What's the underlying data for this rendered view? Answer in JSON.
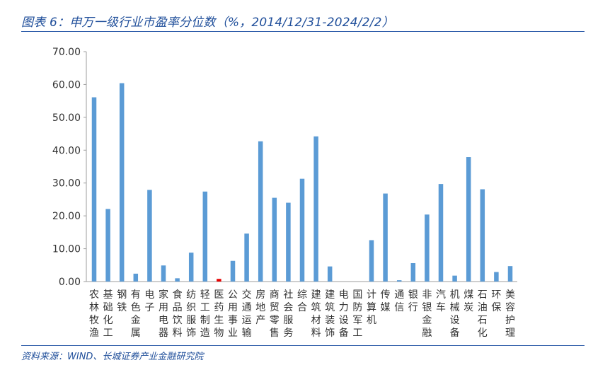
{
  "header": {
    "title": "图表 6：申万一级行业市盈率分位数（%，2014/12/31-2024/2/2）"
  },
  "footer": {
    "source": "资料来源：WIND、长城证券产业金融研究院"
  },
  "colors": {
    "bar": "#5b9bd5",
    "highlight": "#e60000",
    "axis": "#9e9e9e",
    "rule": "#2b5aa8"
  },
  "chart_data": {
    "type": "bar",
    "title": "",
    "xlabel": "",
    "ylabel": "",
    "ylim": [
      0,
      70
    ],
    "grid": false,
    "legend": "none",
    "yticks": [
      "0.00",
      "10.00",
      "20.00",
      "30.00",
      "40.00",
      "50.00",
      "60.00",
      "70.00"
    ],
    "categories": [
      "农林牧渔",
      "基础化工",
      "钢铁",
      "有色金属",
      "电子",
      "家用电器",
      "食品饮料",
      "纺织服饰",
      "轻工制造",
      "医药生物",
      "公用事业",
      "交通运输",
      "房地产",
      "商贸零售",
      "社会服务",
      "综合",
      "建筑材料",
      "建筑装饰",
      "电力设备",
      "国防军工",
      "计算机",
      "传媒",
      "通信",
      "银行",
      "非银金融",
      "汽车",
      "机械设备",
      "煤炭",
      "石油石化",
      "环保",
      "美容护理"
    ],
    "values": [
      56.1,
      22.1,
      60.4,
      2.4,
      27.9,
      4.9,
      1.0,
      8.8,
      27.4,
      0.8,
      6.3,
      14.6,
      42.7,
      25.5,
      24.0,
      31.3,
      44.2,
      4.6,
      0.0,
      0.0,
      12.6,
      26.8,
      0.4,
      5.6,
      20.4,
      29.7,
      1.8,
      37.9,
      28.1,
      2.9,
      4.7
    ],
    "highlight_index": 9
  }
}
